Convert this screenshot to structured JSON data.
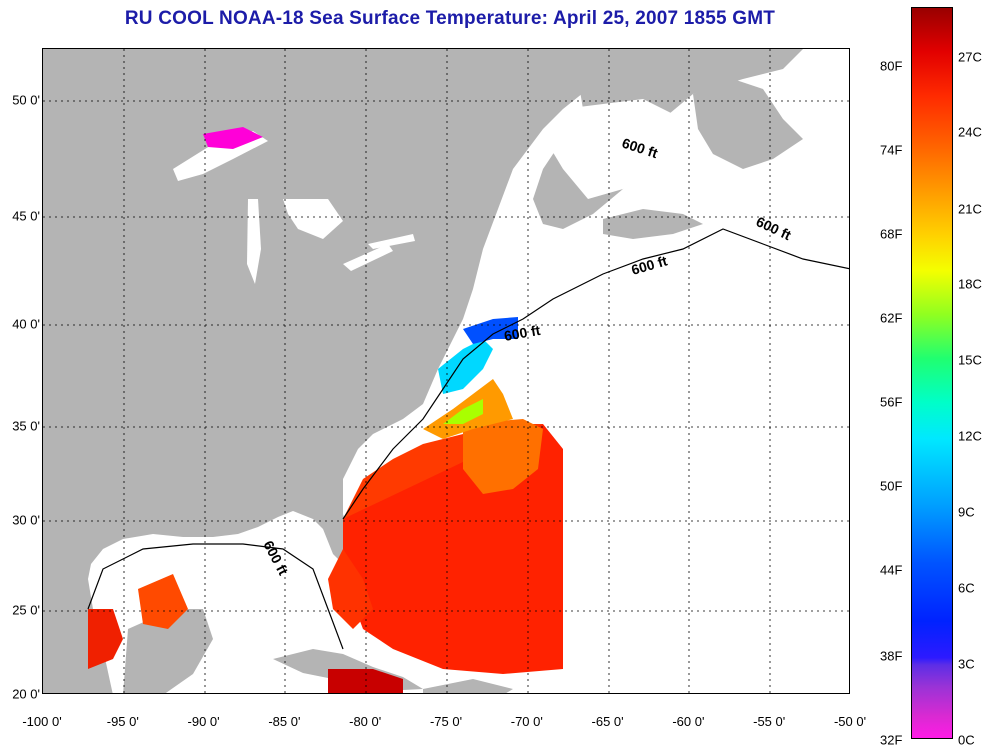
{
  "title": "RU COOL  NOAA-18  Sea Surface Temperature:  April 25, 2007 1855 GMT",
  "map": {
    "land_color": "#b4b4b4",
    "lake_color": "#ffffff",
    "cloud_color": "#ffffff",
    "contour_label": "600 ft",
    "x_ticks": [
      "-100 0'",
      "-95 0'",
      "-90 0'",
      "-85 0'",
      "-80 0'",
      "-75 0'",
      "-70 0'",
      "-65 0'",
      "-60 0'",
      "-55 0'",
      "-50 0'"
    ],
    "y_ticks": [
      "50 0'",
      "45 0'",
      "40 0'",
      "35 0'",
      "30 0'",
      "25 0'",
      "20 0'"
    ]
  },
  "colorbar": {
    "fahrenheit": [
      "80F",
      "74F",
      "68F",
      "62F",
      "56F",
      "50F",
      "44F",
      "38F",
      "32F"
    ],
    "celsius": [
      "27C",
      "24C",
      "21C",
      "18C",
      "15C",
      "12C",
      "9C",
      "6C",
      "3C",
      "0C"
    ]
  }
}
